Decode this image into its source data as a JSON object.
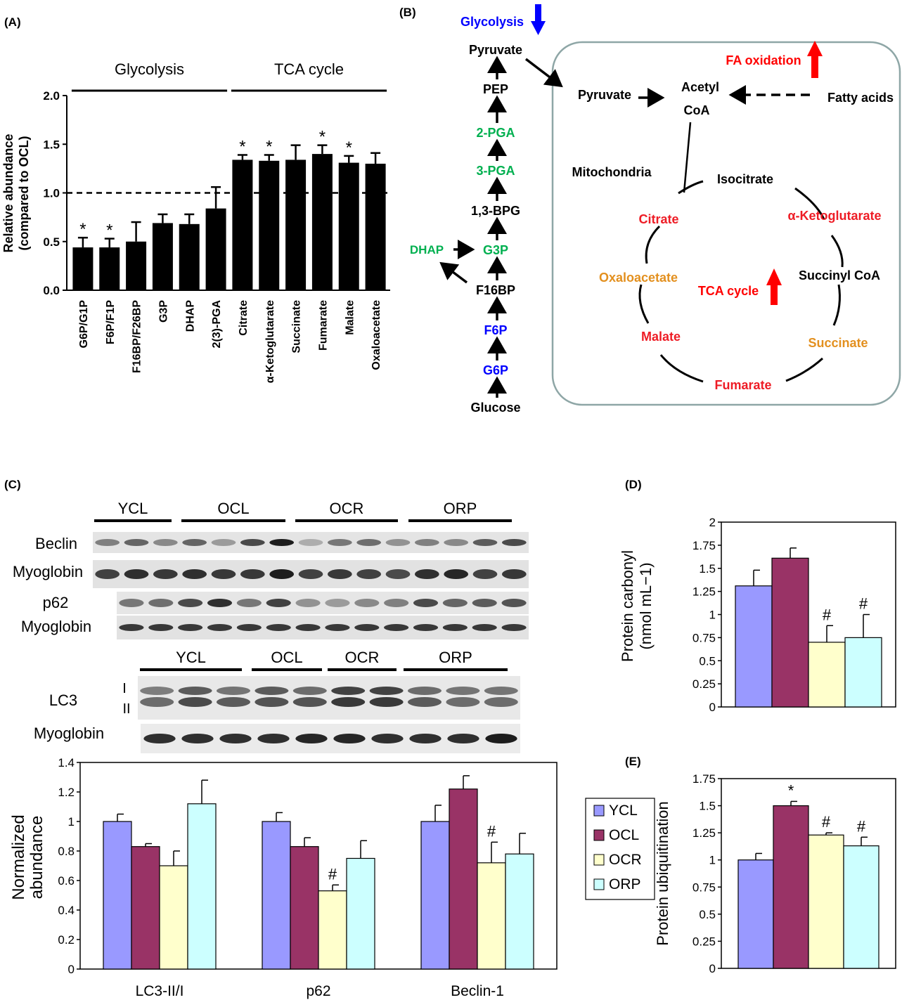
{
  "panel_labels": {
    "a": "(A)",
    "b": "(B)",
    "c": "(C)",
    "d": "(D)",
    "e": "(E)"
  },
  "colors": {
    "ycl": "#9999ff",
    "ocl": "#993366",
    "ocr": "#ffffcc",
    "orp": "#ccffff",
    "up": "#ff0000",
    "down": "#0000ff",
    "green": "#00b050",
    "orange": "#e3901f",
    "red_text": "#ee1c25"
  },
  "chart_data": [
    {
      "id": "A",
      "type": "bar",
      "ylabel": "Relative abundance\n(compared to OCL)",
      "ylim": [
        0,
        2.0
      ],
      "yticks": [
        "0.0",
        "0.5",
        "1.0",
        "1.5",
        "2.0"
      ],
      "reference_line": 1.0,
      "groups": [
        {
          "label": "Glycolysis",
          "from": 0,
          "to": 5
        },
        {
          "label": "TCA cycle",
          "from": 6,
          "to": 11
        }
      ],
      "categories": [
        "G6P/G1P",
        "F6P/F1P",
        "F16BP/F26BP",
        "G3P",
        "DHAP",
        "2(3)-PGA",
        "Citrate",
        "α-Ketoglutarate",
        "Succinate",
        "Fumarate",
        "Malate",
        "Oxaloacetate"
      ],
      "values": [
        0.44,
        0.44,
        0.5,
        0.69,
        0.68,
        0.84,
        1.34,
        1.33,
        1.34,
        1.4,
        1.31,
        1.3
      ],
      "errors": [
        0.1,
        0.09,
        0.2,
        0.09,
        0.1,
        0.22,
        0.05,
        0.06,
        0.15,
        0.09,
        0.07,
        0.11
      ],
      "annotations": [
        "*",
        "*",
        "",
        "",
        "",
        "",
        "*",
        "*",
        "",
        "*",
        "*",
        ""
      ]
    },
    {
      "id": "C",
      "type": "bar",
      "ylabel": "Normalized\nabundance",
      "ylim": [
        0,
        1.4
      ],
      "yticks": [
        "0",
        "0.2",
        "0.4",
        "0.6",
        "0.8",
        "1",
        "1.2",
        "1.4"
      ],
      "categories": [
        "LC3-II/I",
        "p62",
        "Beclin-1"
      ],
      "series": [
        {
          "name": "YCL",
          "values": [
            1.0,
            1.0,
            1.0
          ],
          "errors": [
            0.05,
            0.06,
            0.11
          ],
          "annotations": [
            "",
            "",
            ""
          ]
        },
        {
          "name": "OCL",
          "values": [
            0.83,
            0.83,
            1.22
          ],
          "errors": [
            0.02,
            0.06,
            0.09
          ],
          "annotations": [
            "",
            "",
            ""
          ]
        },
        {
          "name": "OCR",
          "values": [
            0.7,
            0.53,
            0.72
          ],
          "errors": [
            0.1,
            0.04,
            0.14
          ],
          "annotations": [
            "",
            "#",
            "#"
          ]
        },
        {
          "name": "ORP",
          "values": [
            1.12,
            0.75,
            0.78
          ],
          "errors": [
            0.16,
            0.12,
            0.14
          ],
          "annotations": [
            "",
            "",
            ""
          ]
        }
      ]
    },
    {
      "id": "D",
      "type": "bar",
      "ylabel": "Protein carbonyl\n(nmol mL−1)",
      "ylim": [
        0,
        2
      ],
      "yticks": [
        "0",
        "0.25",
        "0.5",
        "0.75",
        "1",
        "1.25",
        "1.5",
        "1.75",
        "2"
      ],
      "categories": [
        "YCL",
        "OCL",
        "OCR",
        "ORP"
      ],
      "values": [
        1.31,
        1.61,
        0.7,
        0.75
      ],
      "errors": [
        0.17,
        0.11,
        0.18,
        0.25
      ],
      "annotations": [
        "",
        "",
        "#",
        "#"
      ]
    },
    {
      "id": "E",
      "type": "bar",
      "ylabel": "Protein ubiquitination",
      "ylim": [
        0,
        1.75
      ],
      "yticks": [
        "0",
        "0.25",
        "0.5",
        "0.75",
        "1",
        "1.25",
        "1.5",
        "1.75"
      ],
      "categories": [
        "YCL",
        "OCL",
        "OCR",
        "ORP"
      ],
      "values": [
        1.0,
        1.5,
        1.23,
        1.13
      ],
      "errors": [
        0.06,
        0.04,
        0.02,
        0.08
      ],
      "annotations": [
        "",
        "*",
        "#",
        "#"
      ],
      "legend": [
        "YCL",
        "OCL",
        "OCR",
        "ORP"
      ]
    }
  ],
  "pathway": {
    "glycolysis_label": "Glycolysis",
    "fa_label": "FA oxidation",
    "tca_label": "TCA cycle",
    "mito_label": "Mitochondria",
    "glycolysis_chain": [
      "Pyruvate",
      "PEP",
      "2-PGA",
      "3-PGA",
      "1,3-BPG",
      "G3P",
      "F16BP",
      "F6P",
      "G6P",
      "Glucose"
    ],
    "dhap": "DHAP",
    "mito_pyruvate": "Pyruvate",
    "acetyl": "Acetyl",
    "coa": "CoA",
    "fatty_acids": "Fatty acids",
    "cycle": {
      "isocitrate": "Isocitrate",
      "citrate": "Citrate",
      "akg": "α-Ketoglutarate",
      "oxaloacetate": "Oxaloacetate",
      "succinyl": "Succinyl CoA",
      "malate": "Malate",
      "succinate": "Succinate",
      "fumarate": "Fumarate"
    }
  },
  "blots": {
    "top_groups": [
      "YCL",
      "OCL",
      "OCR",
      "ORP"
    ],
    "bottom_groups": [
      "YCL",
      "OCL",
      "OCR",
      "ORP"
    ],
    "row_beclin": "Beclin",
    "row_myo1": "Myoglobin",
    "row_p62": "p62",
    "row_myo2": "Myoglobin",
    "row_lc3": "LC3",
    "lc3_i": "I",
    "lc3_ii": "II",
    "row_myo3": "Myoglobin"
  }
}
